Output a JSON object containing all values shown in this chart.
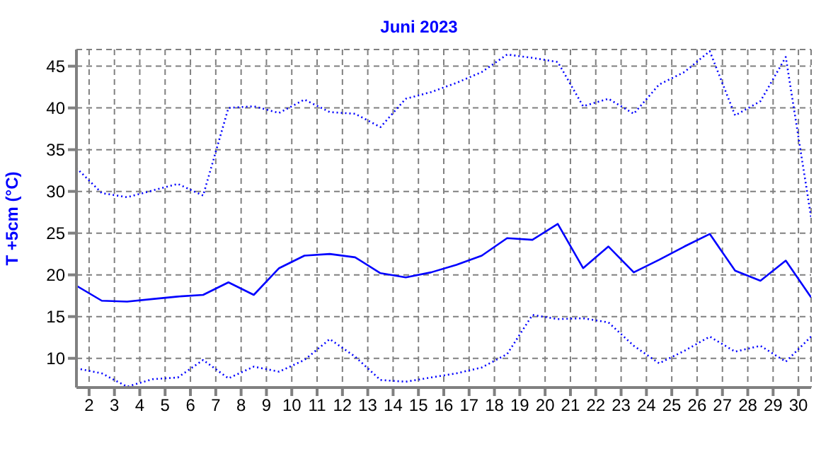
{
  "chart_data": {
    "type": "line",
    "title": "Juni 2023",
    "ylabel": "T +5cm (°C)",
    "x": [
      1.5,
      2.5,
      3.5,
      4.5,
      5.5,
      6.5,
      7.5,
      8.5,
      9.5,
      10.5,
      11.5,
      12.5,
      13.5,
      14.5,
      15.5,
      16.5,
      17.5,
      18.5,
      19.5,
      20.5,
      21.5,
      22.5,
      23.5,
      24.5,
      25.5,
      26.5,
      27.5,
      28.5,
      29.5,
      30.5
    ],
    "series": [
      {
        "color": "#0000ff",
        "line_style": "dotted",
        "values": [
          32.8,
          29.8,
          29.3,
          30.1,
          30.9,
          29.5,
          40.0,
          40.2,
          39.4,
          41.0,
          39.5,
          39.3,
          37.7,
          41.1,
          41.9,
          43.0,
          44.3,
          46.4,
          46.0,
          45.5,
          40.2,
          41.1,
          39.3,
          42.8,
          44.3,
          46.8,
          39.1,
          40.8,
          46.1,
          26.9
        ]
      },
      {
        "color": "#0000ff",
        "line_style": "solid",
        "values": [
          18.7,
          16.9,
          16.8,
          17.1,
          17.4,
          17.6,
          19.1,
          17.6,
          20.8,
          22.3,
          22.5,
          22.1,
          20.2,
          19.7,
          20.3,
          21.2,
          22.3,
          24.4,
          24.2,
          26.1,
          20.8,
          23.4,
          20.3,
          21.8,
          23.4,
          24.9,
          20.5,
          19.3,
          21.7,
          17.3
        ]
      },
      {
        "color": "#0000ff",
        "line_style": "dotted",
        "values": [
          8.8,
          8.2,
          6.6,
          7.5,
          7.7,
          9.8,
          7.6,
          9.0,
          8.4,
          9.8,
          12.3,
          10.2,
          7.4,
          7.2,
          7.7,
          8.2,
          8.9,
          10.5,
          15.2,
          14.7,
          14.8,
          14.3,
          11.5,
          9.4,
          10.9,
          12.6,
          10.8,
          11.5,
          9.6,
          12.6
        ]
      }
    ],
    "xlim": [
      1.5,
      30.5
    ],
    "xticks": [
      2,
      3,
      4,
      5,
      6,
      7,
      8,
      9,
      10,
      11,
      12,
      13,
      14,
      15,
      16,
      17,
      18,
      19,
      20,
      21,
      22,
      23,
      24,
      25,
      26,
      27,
      28,
      29,
      30
    ],
    "ylim": [
      6.5,
      47
    ],
    "yticks": [
      10,
      15,
      20,
      25,
      30,
      35,
      40,
      45
    ],
    "grid": true,
    "marker": "none"
  }
}
